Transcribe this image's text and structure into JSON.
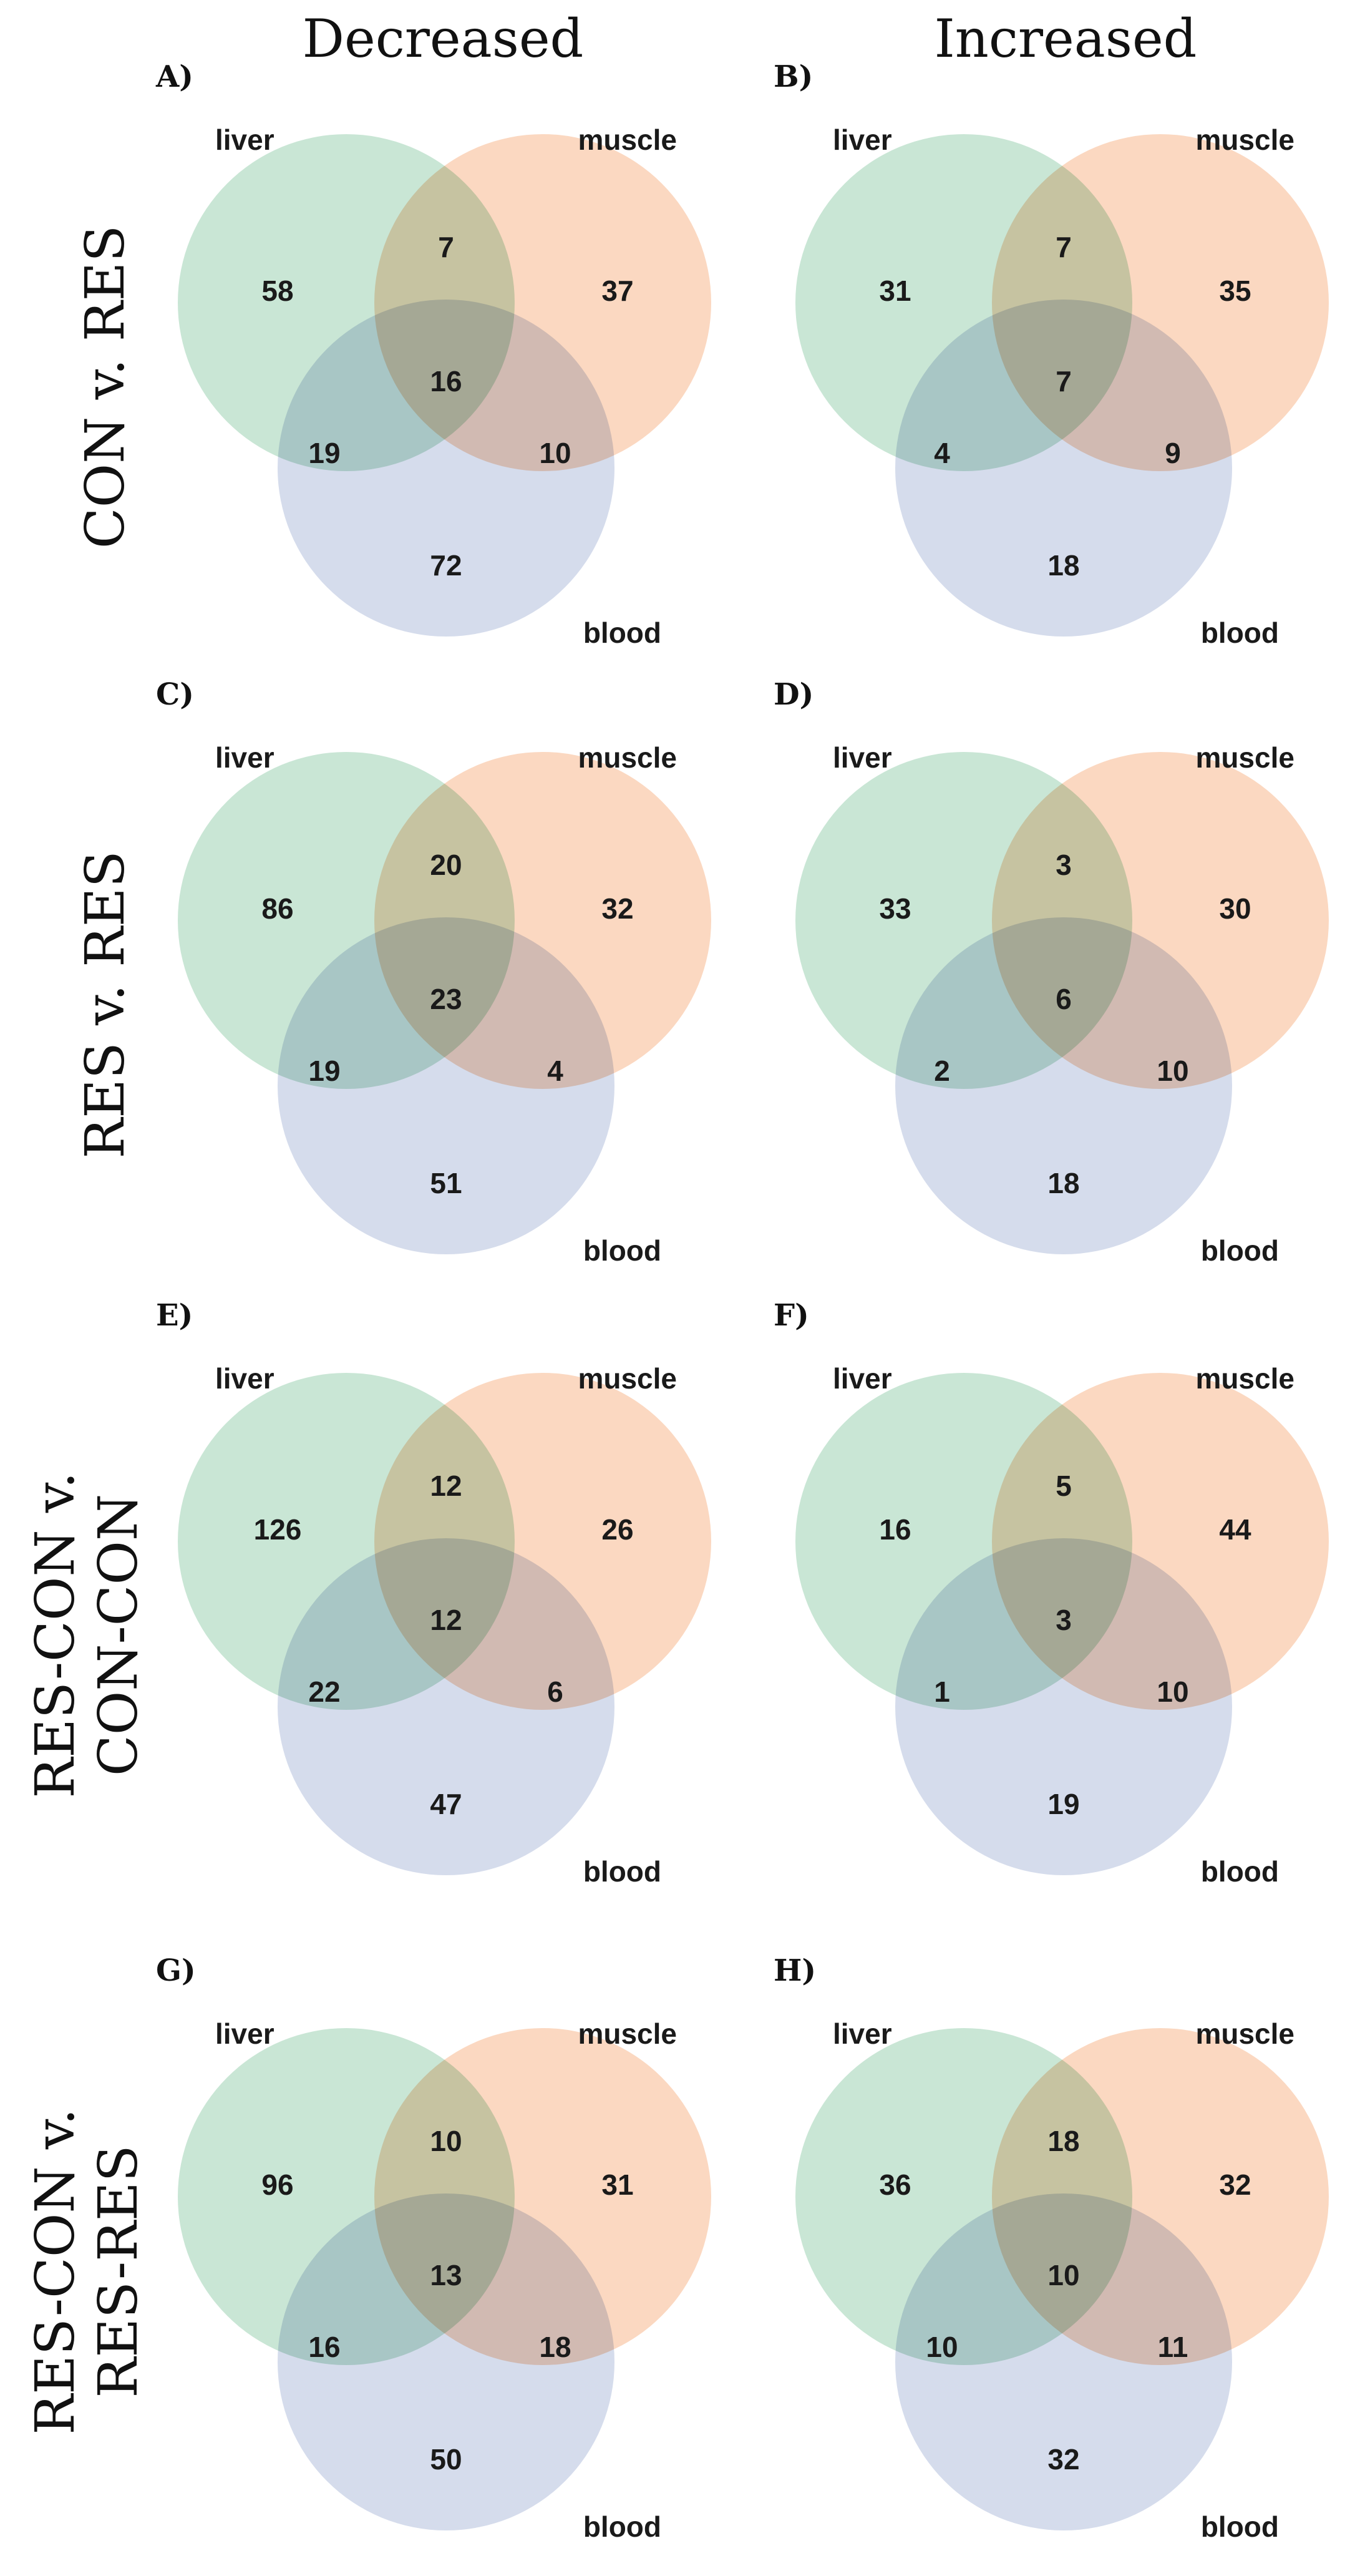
{
  "columns": {
    "left": "Decreased",
    "right": "Increased"
  },
  "rows": [
    {
      "lines": [
        "CON v. RES"
      ]
    },
    {
      "lines": [
        "RES v. RES"
      ]
    },
    {
      "lines": [
        "RES-CON v.",
        "CON-CON"
      ]
    },
    {
      "lines": [
        "RES-CON v.",
        "RES-RES"
      ]
    }
  ],
  "colors": {
    "liver": "#c9e6d5",
    "muscle": "#fbd8c1",
    "blood": "#d5dcec"
  },
  "chart_data": [
    {
      "type": "venn",
      "letter": "A)",
      "sets": [
        "liver",
        "muscle",
        "blood"
      ],
      "regions": {
        "liver_only": 58,
        "muscle_only": 37,
        "blood_only": 72,
        "liver_muscle": 7,
        "liver_blood": 19,
        "muscle_blood": 10,
        "all": 16
      }
    },
    {
      "type": "venn",
      "letter": "B)",
      "sets": [
        "liver",
        "muscle",
        "blood"
      ],
      "regions": {
        "liver_only": 31,
        "muscle_only": 35,
        "blood_only": 18,
        "liver_muscle": 7,
        "liver_blood": 4,
        "muscle_blood": 9,
        "all": 7
      }
    },
    {
      "type": "venn",
      "letter": "C)",
      "sets": [
        "liver",
        "muscle",
        "blood"
      ],
      "regions": {
        "liver_only": 86,
        "muscle_only": 32,
        "blood_only": 51,
        "liver_muscle": 20,
        "liver_blood": 19,
        "muscle_blood": 4,
        "all": 23
      }
    },
    {
      "type": "venn",
      "letter": "D)",
      "sets": [
        "liver",
        "muscle",
        "blood"
      ],
      "regions": {
        "liver_only": 33,
        "muscle_only": 30,
        "blood_only": 18,
        "liver_muscle": 3,
        "liver_blood": 2,
        "muscle_blood": 10,
        "all": 6
      }
    },
    {
      "type": "venn",
      "letter": "E)",
      "sets": [
        "liver",
        "muscle",
        "blood"
      ],
      "regions": {
        "liver_only": 126,
        "muscle_only": 26,
        "blood_only": 47,
        "liver_muscle": 12,
        "liver_blood": 22,
        "muscle_blood": 6,
        "all": 12
      }
    },
    {
      "type": "venn",
      "letter": "F)",
      "sets": [
        "liver",
        "muscle",
        "blood"
      ],
      "regions": {
        "liver_only": 16,
        "muscle_only": 44,
        "blood_only": 19,
        "liver_muscle": 5,
        "liver_blood": 1,
        "muscle_blood": 10,
        "all": 3
      }
    },
    {
      "type": "venn",
      "letter": "G)",
      "sets": [
        "liver",
        "muscle",
        "blood"
      ],
      "regions": {
        "liver_only": 96,
        "muscle_only": 31,
        "blood_only": 50,
        "liver_muscle": 10,
        "liver_blood": 16,
        "muscle_blood": 18,
        "all": 13
      }
    },
    {
      "type": "venn",
      "letter": "H)",
      "sets": [
        "liver",
        "muscle",
        "blood"
      ],
      "regions": {
        "liver_only": 36,
        "muscle_only": 32,
        "blood_only": 32,
        "liver_muscle": 18,
        "liver_blood": 10,
        "muscle_blood": 11,
        "all": 10
      }
    }
  ]
}
